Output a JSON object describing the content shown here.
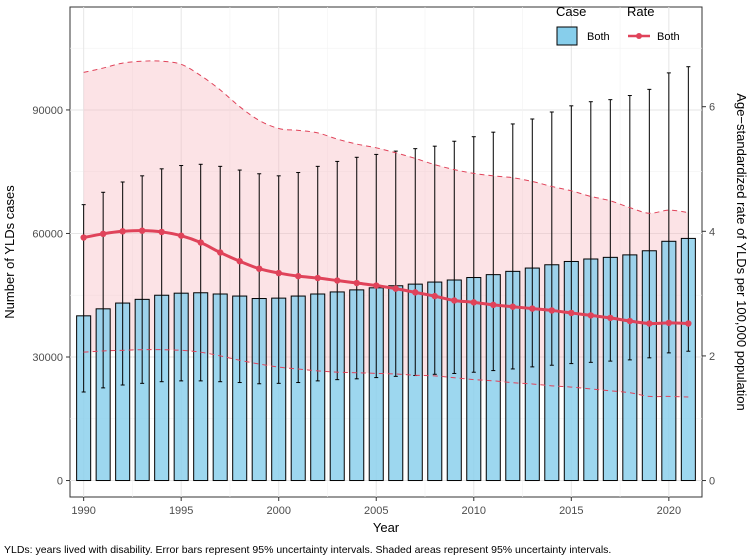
{
  "chart_data": {
    "type": "bar+line",
    "xlabel": "Year",
    "ylabel_left": "Number of YLDs cases",
    "ylabel_right": "Age−standardized rate of YLDs per 100,000 population",
    "x": [
      1990,
      1991,
      1992,
      1993,
      1994,
      1995,
      1996,
      1997,
      1998,
      1999,
      2000,
      2001,
      2002,
      2003,
      2004,
      2005,
      2006,
      2007,
      2008,
      2009,
      2010,
      2011,
      2012,
      2013,
      2014,
      2015,
      2016,
      2017,
      2018,
      2019,
      2020,
      2021
    ],
    "x_ticks": [
      "1990",
      "1995",
      "2000",
      "2005",
      "2010",
      "2015",
      "2020"
    ],
    "x_tick_values": [
      1990,
      1995,
      2000,
      2005,
      2010,
      2015,
      2020
    ],
    "y_left_ticks": [
      "0",
      "30000",
      "60000",
      "90000"
    ],
    "y_left_tick_values": [
      0,
      30000,
      60000,
      90000
    ],
    "y_left_range": [
      -4000,
      115000
    ],
    "y_right_ticks": [
      "0",
      "2",
      "4",
      "6"
    ],
    "y_right_tick_values": [
      0,
      2,
      4,
      6
    ],
    "y_right_range": [
      -0.2642,
      7.6
    ],
    "case_series": {
      "name": "Both",
      "color": "#87CEEB",
      "values": [
        40000,
        41700,
        43100,
        44000,
        45000,
        45500,
        45600,
        45300,
        44800,
        44200,
        44300,
        44800,
        45300,
        45800,
        46300,
        46800,
        47300,
        47700,
        48200,
        48700,
        49300,
        50000,
        50800,
        51600,
        52400,
        53200,
        53800,
        54200,
        54800,
        55800,
        58100,
        58800
      ],
      "lower": [
        21500,
        22500,
        23200,
        23600,
        24000,
        24200,
        24200,
        24000,
        23800,
        23500,
        23600,
        23800,
        24200,
        24500,
        24700,
        25000,
        25300,
        25500,
        25800,
        26000,
        26300,
        26700,
        27100,
        27600,
        28000,
        28400,
        28700,
        29000,
        29300,
        29800,
        31000,
        31400
      ],
      "upper": [
        67000,
        70000,
        72500,
        74000,
        75700,
        76500,
        76800,
        76300,
        75400,
        74500,
        74000,
        74800,
        76300,
        77500,
        78500,
        79200,
        80000,
        80600,
        81200,
        82400,
        83500,
        84600,
        86600,
        87800,
        89500,
        91000,
        92000,
        92500,
        93500,
        95000,
        99000,
        100500
      ]
    },
    "rate_series": {
      "name": "Both",
      "color": "#E0435A",
      "values": [
        3.9,
        3.96,
        4.0,
        4.01,
        3.99,
        3.93,
        3.82,
        3.66,
        3.52,
        3.4,
        3.33,
        3.28,
        3.25,
        3.21,
        3.17,
        3.13,
        3.08,
        3.02,
        2.96,
        2.89,
        2.86,
        2.82,
        2.79,
        2.76,
        2.73,
        2.69,
        2.65,
        2.61,
        2.56,
        2.52,
        2.53,
        2.52
      ],
      "lower": [
        2.06,
        2.08,
        2.09,
        2.1,
        2.1,
        2.09,
        2.06,
        2.0,
        1.93,
        1.87,
        1.82,
        1.79,
        1.76,
        1.74,
        1.73,
        1.72,
        1.71,
        1.69,
        1.68,
        1.65,
        1.62,
        1.6,
        1.57,
        1.55,
        1.52,
        1.5,
        1.47,
        1.44,
        1.41,
        1.35,
        1.35,
        1.34
      ],
      "upper": [
        6.55,
        6.62,
        6.7,
        6.73,
        6.73,
        6.68,
        6.5,
        6.27,
        6.0,
        5.78,
        5.65,
        5.62,
        5.58,
        5.48,
        5.4,
        5.34,
        5.26,
        5.17,
        5.07,
        4.99,
        4.93,
        4.89,
        4.86,
        4.8,
        4.72,
        4.65,
        4.56,
        4.49,
        4.38,
        4.29,
        4.34,
        4.3
      ]
    },
    "legend": {
      "case_title": "Case",
      "rate_title": "Rate",
      "case_label": "Both",
      "rate_label": "Both",
      "position": "top-right"
    },
    "caption": "YLDs: years lived with disability. Error bars represent 95% uncertainty intervals. Shaded areas represent 95% uncertainty intervals."
  }
}
